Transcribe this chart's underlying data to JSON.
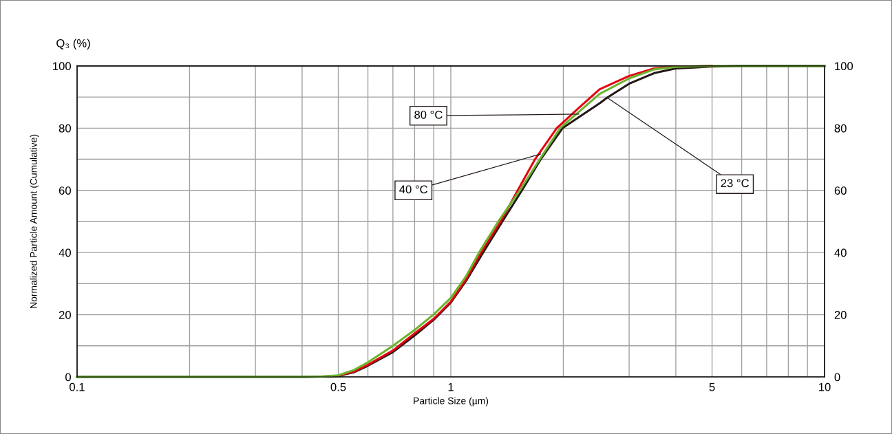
{
  "chart_data": {
    "type": "line",
    "xlabel": "Particle Size (µm)",
    "ylabel": "Normalized Particle Amount (Cumulative)",
    "log": "x",
    "xlim": [
      0.1,
      10
    ],
    "xticks": [
      0.1,
      {
        "value": 0.2,
        "label": null
      },
      {
        "value": 0.3,
        "label": null
      },
      {
        "value": 0.4,
        "label": null
      },
      0.5,
      {
        "value": 0.6,
        "label": null
      },
      {
        "value": 0.7,
        "label": null
      },
      {
        "value": 0.8,
        "label": null
      },
      {
        "value": 0.9,
        "label": null
      },
      1,
      {
        "value": 2,
        "label": null
      },
      {
        "value": 3,
        "label": null
      },
      {
        "value": 4,
        "label": null
      },
      5,
      {
        "value": 6,
        "label": null
      },
      {
        "value": 7,
        "label": null
      },
      {
        "value": 8,
        "label": null
      },
      {
        "value": 9,
        "label": null
      },
      10
    ],
    "ylim": [
      0,
      100
    ],
    "yticks": [
      0,
      {
        "value": 10,
        "label": null
      },
      20,
      {
        "value": 30,
        "label": null
      },
      40,
      {
        "value": 50,
        "label": null
      },
      60,
      {
        "value": 70,
        "label": null
      },
      80,
      {
        "value": 90,
        "label": null
      },
      100
    ],
    "y2lim": [
      0,
      100
    ],
    "y2ticks": [
      0,
      20,
      40,
      60,
      80,
      100
    ],
    "grid": true,
    "legend": false,
    "marker": "none",
    "line_style": "solid",
    "series": [
      {
        "color": "#231815",
        "x": [
          0.1,
          0.4,
          0.45,
          0.5,
          0.55,
          0.6,
          0.7,
          0.8,
          0.9,
          1.0,
          1.1,
          1.22,
          1.374,
          1.55,
          1.74,
          1.99,
          2.5,
          2.62,
          3,
          3.5,
          4,
          5,
          6,
          10
        ],
        "values": [
          0,
          0,
          0.1,
          0.3,
          1.5,
          3.6,
          8.0,
          13.3,
          18.4,
          23.9,
          31,
          40,
          50,
          60,
          70,
          80,
          88,
          89.8,
          94.3,
          97.7,
          99.2,
          99.8,
          100,
          100
        ]
      },
      {
        "color": "#e60012",
        "x": [
          0.5,
          0.55,
          0.6,
          0.7,
          0.8,
          0.9,
          1.0,
          1.1,
          1.205,
          1.36,
          1.51,
          1.68,
          1.92,
          2.2,
          2.5,
          3,
          3.5,
          4,
          5
        ],
        "values": [
          0.4,
          1.7,
          3.9,
          8.5,
          14,
          18.7,
          24.2,
          31.5,
          40,
          50,
          60,
          70,
          80,
          86.5,
          92.5,
          96.8,
          99.2,
          99.8,
          100
        ]
      },
      {
        "color": "#6ab42d",
        "x": [
          0.1,
          0.4,
          0.45,
          0.5,
          0.55,
          0.6,
          0.7,
          0.8,
          0.9,
          1.0,
          1.1,
          1.19,
          1.34,
          1.53,
          1.73,
          1.96,
          2.5,
          3,
          3.5,
          4,
          5,
          6,
          10
        ],
        "values": [
          0,
          0,
          0.1,
          0.5,
          2.2,
          4.7,
          10,
          15.1,
          20.1,
          25.4,
          32.5,
          40,
          50,
          60,
          70,
          80,
          91,
          96,
          98.9,
          99.7,
          100,
          100,
          100
        ]
      }
    ],
    "annotations": [
      "Q₃ (%)",
      {
        "text": "80 °C",
        "x": 2.2,
        "y": 84.5
      },
      {
        "text": "40 °C",
        "x": 1.74,
        "y": 71.7
      },
      {
        "text": "23 °C",
        "x": 2.62,
        "y": 89.8
      }
    ]
  }
}
